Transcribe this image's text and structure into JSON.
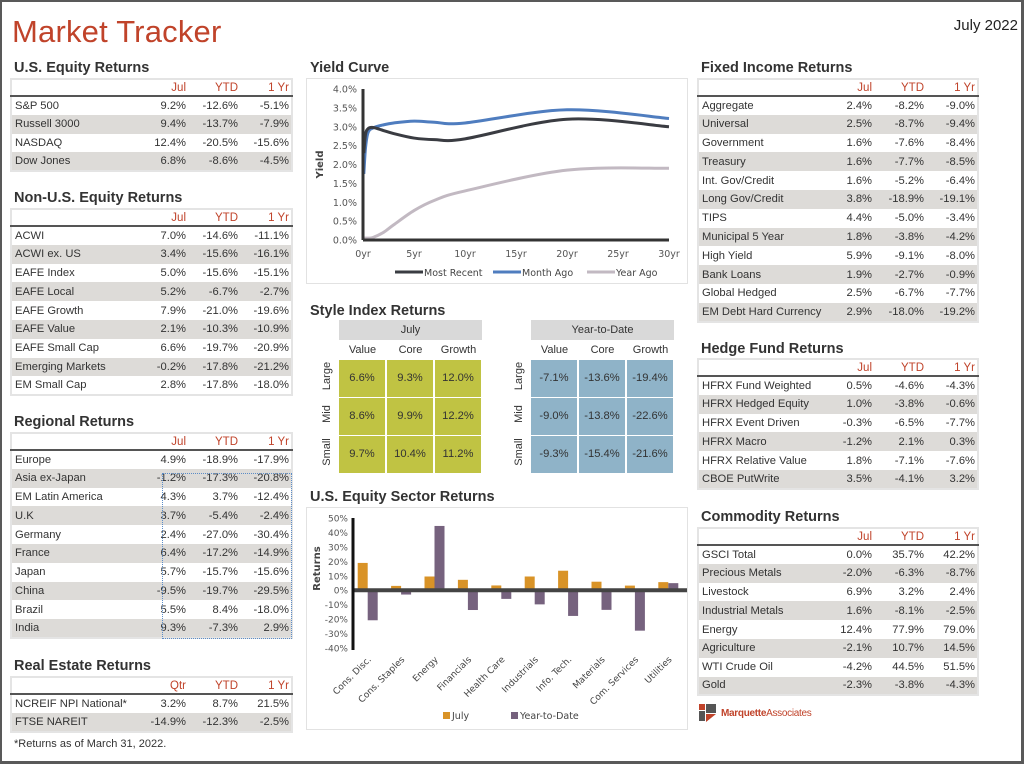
{
  "header": {
    "title": "Market Tracker",
    "date": "July 2022"
  },
  "colors": {
    "accent": "#c0432a",
    "alt_row": "#dddbd8",
    "july_green": "#c0c343",
    "ytd_blue": "#8fb3c8",
    "series_most_recent": "#3a3c42",
    "series_month_ago": "#4f7dbf",
    "series_year_ago": "#c2b9c2",
    "bar_july": "#d99327",
    "bar_ytd": "#76627e"
  },
  "us_equity": {
    "title": "U.S. Equity Returns",
    "columns": [
      "Jul",
      "YTD",
      "1 Yr"
    ],
    "rows": [
      {
        "name": "S&P 500",
        "values": [
          "9.2%",
          "-12.6%",
          "-5.1%"
        ]
      },
      {
        "name": "Russell 3000",
        "values": [
          "9.4%",
          "-13.7%",
          "-7.9%"
        ]
      },
      {
        "name": "NASDAQ",
        "values": [
          "12.4%",
          "-20.5%",
          "-15.6%"
        ]
      },
      {
        "name": "Dow Jones",
        "values": [
          "6.8%",
          "-8.6%",
          "-4.5%"
        ]
      }
    ]
  },
  "non_us_equity": {
    "title": "Non-U.S. Equity Returns",
    "columns": [
      "Jul",
      "YTD",
      "1 Yr"
    ],
    "rows": [
      {
        "name": "ACWI",
        "values": [
          "7.0%",
          "-14.6%",
          "-11.1%"
        ]
      },
      {
        "name": "ACWI ex. US",
        "values": [
          "3.4%",
          "-15.6%",
          "-16.1%"
        ]
      },
      {
        "name": "EAFE Index",
        "values": [
          "5.0%",
          "-15.6%",
          "-15.1%"
        ]
      },
      {
        "name": "EAFE Local",
        "values": [
          "5.2%",
          "-6.7%",
          "-2.7%"
        ]
      },
      {
        "name": "EAFE Growth",
        "values": [
          "7.9%",
          "-21.0%",
          "-19.6%"
        ]
      },
      {
        "name": "EAFE Value",
        "values": [
          "2.1%",
          "-10.3%",
          "-10.9%"
        ]
      },
      {
        "name": "EAFE Small Cap",
        "values": [
          "6.6%",
          "-19.7%",
          "-20.9%"
        ]
      },
      {
        "name": "Emerging Markets",
        "values": [
          "-0.2%",
          "-17.8%",
          "-21.2%"
        ]
      },
      {
        "name": "EM Small Cap",
        "values": [
          "2.8%",
          "-17.8%",
          "-18.0%"
        ]
      }
    ]
  },
  "regional": {
    "title": "Regional Returns",
    "columns": [
      "Jul",
      "YTD",
      "1 Yr"
    ],
    "rows": [
      {
        "name": "Europe",
        "values": [
          "4.9%",
          "-18.9%",
          "-17.9%"
        ]
      },
      {
        "name": "Asia ex-Japan",
        "values": [
          "-1.2%",
          "-17.3%",
          "-20.8%"
        ]
      },
      {
        "name": "EM Latin America",
        "values": [
          "4.3%",
          "3.7%",
          "-12.4%"
        ]
      },
      {
        "name": "U.K",
        "values": [
          "3.7%",
          "-5.4%",
          "-2.4%"
        ]
      },
      {
        "name": "Germany",
        "values": [
          "2.4%",
          "-27.0%",
          "-30.4%"
        ]
      },
      {
        "name": "France",
        "values": [
          "6.4%",
          "-17.2%",
          "-14.9%"
        ]
      },
      {
        "name": "Japan",
        "values": [
          "5.7%",
          "-15.7%",
          "-15.6%"
        ]
      },
      {
        "name": "China",
        "values": [
          "-9.5%",
          "-19.7%",
          "-29.5%"
        ]
      },
      {
        "name": "Brazil",
        "values": [
          "5.5%",
          "8.4%",
          "-18.0%"
        ]
      },
      {
        "name": "India",
        "values": [
          "9.3%",
          "-7.3%",
          "2.9%"
        ]
      }
    ]
  },
  "real_estate": {
    "title": "Real Estate Returns",
    "columns": [
      "Qtr",
      "YTD",
      "1 Yr"
    ],
    "rows": [
      {
        "name": "NCREIF NPI National*",
        "values": [
          "3.2%",
          "8.7%",
          "21.5%"
        ]
      },
      {
        "name": "FTSE NAREIT",
        "values": [
          "-14.9%",
          "-12.3%",
          "-2.5%"
        ]
      }
    ],
    "footnote": "*Returns as of March 31, 2022."
  },
  "fixed_income": {
    "title": "Fixed Income Returns",
    "columns": [
      "Jul",
      "YTD",
      "1 Yr"
    ],
    "rows": [
      {
        "name": "Aggregate",
        "values": [
          "2.4%",
          "-8.2%",
          "-9.0%"
        ]
      },
      {
        "name": "Universal",
        "values": [
          "2.5%",
          "-8.7%",
          "-9.4%"
        ]
      },
      {
        "name": "Government",
        "values": [
          "1.6%",
          "-7.6%",
          "-8.4%"
        ]
      },
      {
        "name": "Treasury",
        "values": [
          "1.6%",
          "-7.7%",
          "-8.5%"
        ]
      },
      {
        "name": "Int. Gov/Credit",
        "values": [
          "1.6%",
          "-5.2%",
          "-6.4%"
        ]
      },
      {
        "name": "Long Gov/Credit",
        "values": [
          "3.8%",
          "-18.9%",
          "-19.1%"
        ]
      },
      {
        "name": "TIPS",
        "values": [
          "4.4%",
          "-5.0%",
          "-3.4%"
        ]
      },
      {
        "name": "Municipal 5 Year",
        "values": [
          "1.8%",
          "-3.8%",
          "-4.2%"
        ]
      },
      {
        "name": "High Yield",
        "values": [
          "5.9%",
          "-9.1%",
          "-8.0%"
        ]
      },
      {
        "name": "Bank Loans",
        "values": [
          "1.9%",
          "-2.7%",
          "-0.9%"
        ]
      },
      {
        "name": "Global Hedged",
        "values": [
          "2.5%",
          "-6.7%",
          "-7.7%"
        ]
      },
      {
        "name": "EM Debt Hard Currency",
        "values": [
          "2.9%",
          "-18.0%",
          "-19.2%"
        ]
      }
    ]
  },
  "hedge_fund": {
    "title": "Hedge Fund Returns",
    "columns": [
      "Jul",
      "YTD",
      "1 Yr"
    ],
    "rows": [
      {
        "name": "HFRX Fund Weighted",
        "values": [
          "0.5%",
          "-4.6%",
          "-4.3%"
        ]
      },
      {
        "name": "HFRX Hedged Equity",
        "values": [
          "1.0%",
          "-3.8%",
          "-0.6%"
        ]
      },
      {
        "name": "HFRX Event Driven",
        "values": [
          "-0.3%",
          "-6.5%",
          "-7.7%"
        ]
      },
      {
        "name": "HFRX Macro",
        "values": [
          "-1.2%",
          "2.1%",
          "0.3%"
        ]
      },
      {
        "name": "HFRX Relative Value",
        "values": [
          "1.8%",
          "-7.1%",
          "-7.6%"
        ]
      },
      {
        "name": "CBOE PutWrite",
        "values": [
          "3.5%",
          "-4.1%",
          "3.2%"
        ]
      }
    ]
  },
  "commodity": {
    "title": "Commodity Returns",
    "columns": [
      "Jul",
      "YTD",
      "1 Yr"
    ],
    "rows": [
      {
        "name": "GSCI Total",
        "values": [
          "0.0%",
          "35.7%",
          "42.2%"
        ]
      },
      {
        "name": "Precious Metals",
        "values": [
          "-2.0%",
          "-6.3%",
          "-8.7%"
        ]
      },
      {
        "name": "Livestock",
        "values": [
          "6.9%",
          "3.2%",
          "2.4%"
        ]
      },
      {
        "name": "Industrial Metals",
        "values": [
          "1.6%",
          "-8.1%",
          "-2.5%"
        ]
      },
      {
        "name": "Energy",
        "values": [
          "12.4%",
          "77.9%",
          "79.0%"
        ]
      },
      {
        "name": "Agriculture",
        "values": [
          "-2.1%",
          "10.7%",
          "14.5%"
        ]
      },
      {
        "name": "WTI Crude Oil",
        "values": [
          "-4.2%",
          "44.5%",
          "51.5%"
        ]
      },
      {
        "name": "Gold",
        "values": [
          "-2.3%",
          "-3.8%",
          "-4.3%"
        ]
      }
    ]
  },
  "style_index": {
    "title": "Style Index Returns",
    "panels": [
      {
        "header": "July",
        "columns": [
          "Value",
          "Core",
          "Growth"
        ],
        "rows": [
          "Large",
          "Mid",
          "Small"
        ],
        "cells": [
          [
            "6.6%",
            "9.3%",
            "12.0%"
          ],
          [
            "8.6%",
            "9.9%",
            "12.2%"
          ],
          [
            "9.7%",
            "10.4%",
            "11.2%"
          ]
        ]
      },
      {
        "header": "Year-to-Date",
        "columns": [
          "Value",
          "Core",
          "Growth"
        ],
        "rows": [
          "Large",
          "Mid",
          "Small"
        ],
        "cells": [
          [
            "-7.1%",
            "-13.6%",
            "-19.4%"
          ],
          [
            "-9.0%",
            "-13.8%",
            "-22.6%"
          ],
          [
            "-9.3%",
            "-15.4%",
            "-21.6%"
          ]
        ]
      }
    ]
  },
  "logo": {
    "bold": "Marquette",
    "light": "Associates"
  },
  "chart_data": [
    {
      "type": "line",
      "title": "Yield Curve",
      "xlabel": "",
      "ylabel": "Yield",
      "x_ticks": [
        "0yr",
        "5yr",
        "10yr",
        "15yr",
        "20yr",
        "25yr",
        "30yr"
      ],
      "y_ticks": [
        "0.0%",
        "0.5%",
        "1.0%",
        "1.5%",
        "2.0%",
        "2.5%",
        "3.0%",
        "3.5%",
        "4.0%"
      ],
      "xlim": [
        0,
        30
      ],
      "ylim": [
        0,
        4.0
      ],
      "legend": "bottom",
      "grid": false,
      "series": [
        {
          "name": "Most Recent",
          "x": [
            0.08,
            0.25,
            0.5,
            1,
            2,
            3,
            5,
            7,
            10,
            20,
            30
          ],
          "y": [
            2.3,
            2.8,
            2.95,
            2.98,
            2.9,
            2.82,
            2.7,
            2.66,
            2.68,
            3.2,
            3.0
          ]
        },
        {
          "name": "Month Ago",
          "x": [
            0.08,
            0.25,
            0.5,
            1,
            2,
            3,
            5,
            7,
            10,
            20,
            30
          ],
          "y": [
            1.75,
            2.45,
            2.85,
            2.97,
            3.05,
            3.1,
            3.15,
            3.12,
            3.1,
            3.45,
            3.22
          ]
        },
        {
          "name": "Year Ago",
          "x": [
            0.08,
            0.25,
            0.5,
            1,
            2,
            3,
            5,
            7,
            10,
            20,
            30
          ],
          "y": [
            0.05,
            0.05,
            0.05,
            0.07,
            0.2,
            0.4,
            0.78,
            1.05,
            1.3,
            1.85,
            1.9
          ]
        }
      ]
    },
    {
      "type": "bar",
      "title": "U.S. Equity Sector Returns",
      "xlabel": "",
      "ylabel": "Returns",
      "categories": [
        "Cons. Disc.",
        "Cons. Staples",
        "Energy",
        "Financials",
        "Health Care",
        "Industrials",
        "Info. Tech.",
        "Materials",
        "Com. Services",
        "Utilities"
      ],
      "y_ticks": [
        "50%",
        "40%",
        "30%",
        "20%",
        "10%",
        "0%",
        "-10%",
        "-20%",
        "-30%",
        "-40%"
      ],
      "ylim": [
        -40,
        50
      ],
      "legend": "bottom",
      "grid": false,
      "series": [
        {
          "name": "July",
          "values": [
            18.9,
            3.0,
            9.5,
            7.2,
            3.3,
            9.5,
            13.5,
            5.9,
            3.2,
            5.6
          ]
        },
        {
          "name": "Year-to-Date",
          "values": [
            -20.8,
            -3.0,
            44.5,
            -13.7,
            -6.0,
            -9.8,
            -17.8,
            -13.6,
            -28.0,
            4.9
          ]
        }
      ]
    }
  ]
}
